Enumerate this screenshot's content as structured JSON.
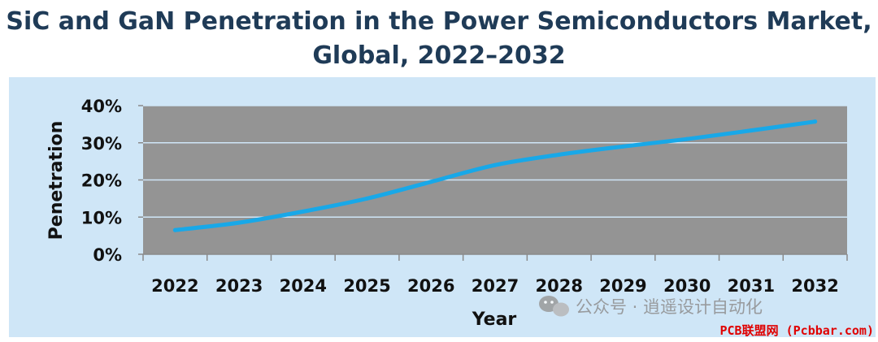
{
  "chart_data": {
    "type": "line",
    "title_line1": "SiC and GaN Penetration in the Power Semiconductors Market,",
    "title_line2": "Global, 2022–2032",
    "xlabel": "Year",
    "ylabel": "Penetration",
    "ylim": [
      0,
      40
    ],
    "yticks": [
      "0%",
      "10%",
      "20%",
      "30%",
      "40%"
    ],
    "grid": true,
    "categories": [
      "2022",
      "2023",
      "2024",
      "2025",
      "2026",
      "2027",
      "2028",
      "2029",
      "2030",
      "2031",
      "2032"
    ],
    "series": [
      {
        "values": [
          6.5,
          8.5,
          11.5,
          15,
          19.5,
          24,
          26.8,
          29,
          31,
          33.3,
          35.7
        ],
        "color": "#18a8e8"
      }
    ],
    "colors": {
      "plot_background": "#949494",
      "panel_background": "#cfe6f7",
      "gridline": "#cfe6f7",
      "title": "#1f3b57"
    }
  },
  "watermark": {
    "text": "公众号 · 逍遥设计自动化",
    "site": "PCB联盟网 (Pcbbar.com)"
  }
}
